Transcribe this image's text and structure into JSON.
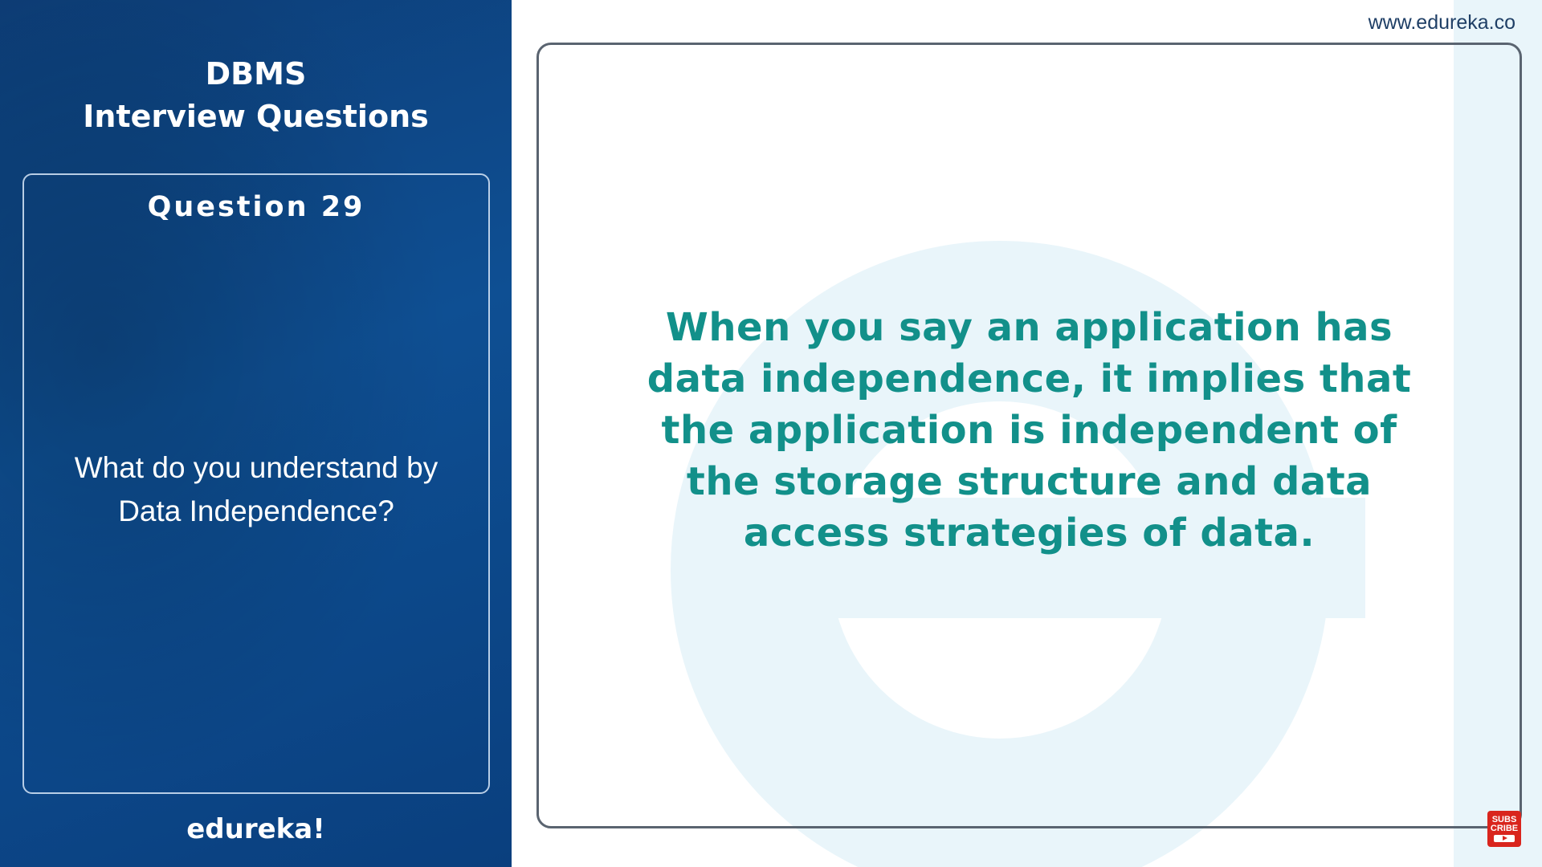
{
  "panel": {
    "title_line1": "DBMS",
    "title_line2": "Interview Questions",
    "question_number": "Question 29",
    "question_text": "What do you understand by Data Independence?",
    "brand": "edureka!"
  },
  "header": {
    "site_url": "www.edureka.co"
  },
  "answer": {
    "text": "When you say an application has data independence, it implies that the application is independent of the storage structure and data access strategies of data."
  },
  "subscribe": {
    "label": "SUBS CRIBE",
    "icon": "play-icon"
  },
  "colors": {
    "panel_blue": "#0e4f93",
    "answer_teal": "#12908a",
    "watermark": "#e9f5fa",
    "subscribe_red": "#d9251d"
  }
}
